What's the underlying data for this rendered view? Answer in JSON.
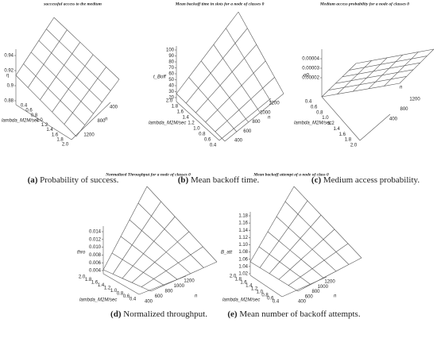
{
  "panels": [
    {
      "title": "successful access to the medium",
      "z_label": "η",
      "z_ticks": [
        "0.94",
        "0.92",
        "0.9",
        "0.88"
      ],
      "lambda_label": "lambda_M2M/sec",
      "lambda_ticks": [
        "0.4",
        "0.6",
        "0.8",
        "1.0",
        "1.2",
        "1.4",
        "1.6",
        "1.8",
        "2.0"
      ],
      "n_label": "n",
      "n_ticks": [
        "400",
        "800",
        "1200"
      ],
      "caption": {
        "label": "(a)",
        "text": "Probability of success."
      }
    },
    {
      "title": "Mean backoff time in slots for a node of  classes 0",
      "z_label": "t_Boff",
      "z_ticks": [
        "100",
        "90",
        "80",
        "70",
        "60",
        "50",
        "40",
        "30",
        "20"
      ],
      "lambda_label": "lambda_M2M/sec",
      "lambda_ticks": [
        "2.0",
        "1.8",
        "1.6",
        "1.4",
        "1.2",
        "1.0",
        "0.8",
        "0.6",
        "0.4"
      ],
      "n_label": "n",
      "n_ticks": [
        "1200",
        "1000",
        "800",
        "600",
        "400"
      ],
      "caption": {
        "label": "(b)",
        "text": "Mean backoff time."
      }
    },
    {
      "title": "Medium access probability for a node of  classes 0",
      "z_label": "α0",
      "z_ticks": [
        "0.00004",
        "0.00003",
        "0.00002"
      ],
      "lambda_label": "lambda_M2M/sec",
      "lambda_ticks": [
        "0.4",
        "0.6",
        "0.8",
        "1.0",
        "1.2",
        "1.4",
        "1.6",
        "1.8",
        "2.0"
      ],
      "n_label": "n",
      "n_ticks": [
        "400",
        "800",
        "1200"
      ],
      "caption": {
        "label": "(c)",
        "text": "Medium access probability."
      }
    },
    {
      "title": "Normalized Throughput for a node of  classes 0",
      "z_label": "thro",
      "z_ticks": [
        "0.014",
        "0.012",
        "0.010",
        "0.008",
        "0.006",
        "0.004"
      ],
      "lambda_label": "lambda_M2M/sec",
      "lambda_ticks": [
        "2.0",
        "1.8",
        "1.6",
        "1.4",
        "1.2",
        "1.0",
        "0.8",
        "0.6",
        "0.4"
      ],
      "n_label": "n",
      "n_ticks": [
        "1200",
        "1000",
        "800",
        "600",
        "400"
      ],
      "caption": {
        "label": "(d)",
        "text": "Normalized throughput."
      }
    },
    {
      "title": "Mean backoff attempt of a node of class 0",
      "z_label": "B_att",
      "z_ticks": [
        "1.18",
        "1.16",
        "1.14",
        "1.12",
        "1.10",
        "1.08",
        "1.06",
        "1.04",
        "1.02"
      ],
      "lambda_label": "lambda_M2M/sec",
      "lambda_ticks": [
        "2.0",
        "1.8",
        "1.6",
        "1.4",
        "1.2",
        "1.0",
        "0.8",
        "0.6",
        "0.4"
      ],
      "n_label": "n",
      "n_ticks": [
        "1200",
        "1000",
        "800",
        "600",
        "400"
      ],
      "caption": {
        "label": "(e)",
        "text": "Mean number of backoff attempts."
      }
    }
  ]
}
